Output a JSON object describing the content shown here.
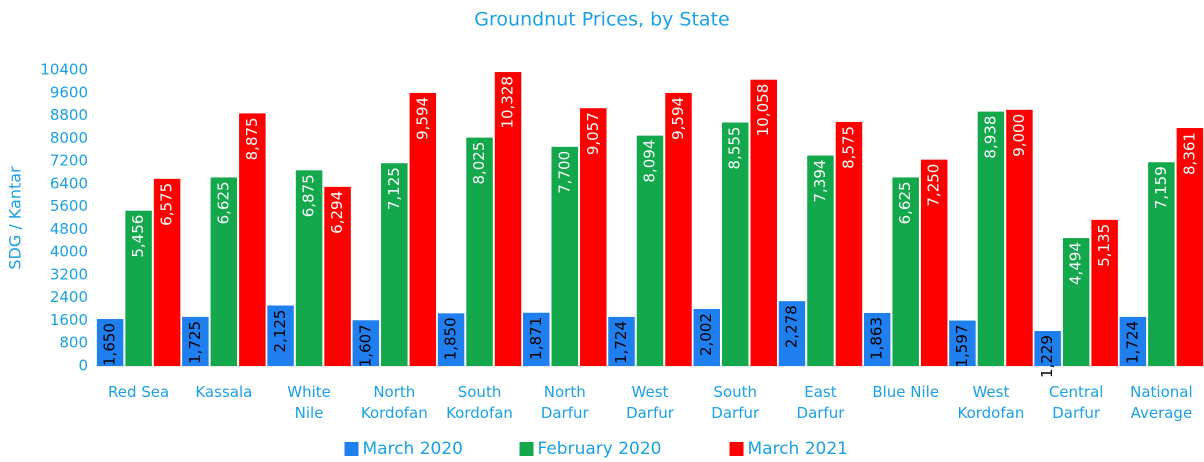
{
  "chart_data": {
    "type": "bar",
    "title": "Groundnut Prices, by State",
    "y_label": "SDG / Kantar",
    "categories": [
      "Red Sea",
      "Kassala",
      "White\nNile",
      "North\nKordofan",
      "South\nKordofan",
      "North\nDarfur",
      "West\nDarfur",
      "South\nDarfur",
      "East\nDarfur",
      "Blue Nile",
      "West\nKordofan",
      "Central\nDarfur",
      "National\nAverage"
    ],
    "series": [
      {
        "name": "March 2020",
        "color": "#1f7fef",
        "label_color": "#000000",
        "values": [
          1650,
          1725,
          2125,
          1607,
          1850,
          1871,
          1724,
          2002,
          2278,
          1863,
          1597,
          1229,
          1724
        ],
        "value_labels": [
          "1,650",
          "1,725",
          "2,125",
          "1,607",
          "1,850",
          "1,871",
          "1,724",
          "2,002",
          "2,278",
          "1,863",
          "1,597",
          "1,229",
          "1,724"
        ]
      },
      {
        "name": "February 2020",
        "color": "#12a84b",
        "label_color": "#ffffff",
        "values": [
          5456,
          6625,
          6875,
          7125,
          8025,
          7700,
          8094,
          8555,
          7394,
          6625,
          8938,
          4494,
          7159
        ],
        "value_labels": [
          "5,456",
          "6,625",
          "6,875",
          "7,125",
          "8,025",
          "7,700",
          "8,094",
          "8,555",
          "7,394",
          "6,625",
          "8,938",
          "4,494",
          "7,159"
        ]
      },
      {
        "name": "March 2021",
        "color": "#ff0000",
        "label_color": "#ffffff",
        "values": [
          6575,
          8875,
          6294,
          9594,
          10328,
          9057,
          9594,
          10058,
          8575,
          7250,
          9000,
          5135,
          8361
        ],
        "value_labels": [
          "6,575",
          "8,875",
          "6,294",
          "9,594",
          "10,328",
          "9,057",
          "9,594",
          "10,058",
          "8,575",
          "7,250",
          "9,000",
          "5,135",
          "8,361"
        ]
      }
    ],
    "ylim": [
      0,
      10400
    ],
    "yticks": [
      0,
      800,
      1600,
      2400,
      3200,
      4000,
      4800,
      5600,
      6400,
      7200,
      8000,
      8800,
      9600,
      10400
    ],
    "grid": false,
    "legend": "bottom"
  }
}
